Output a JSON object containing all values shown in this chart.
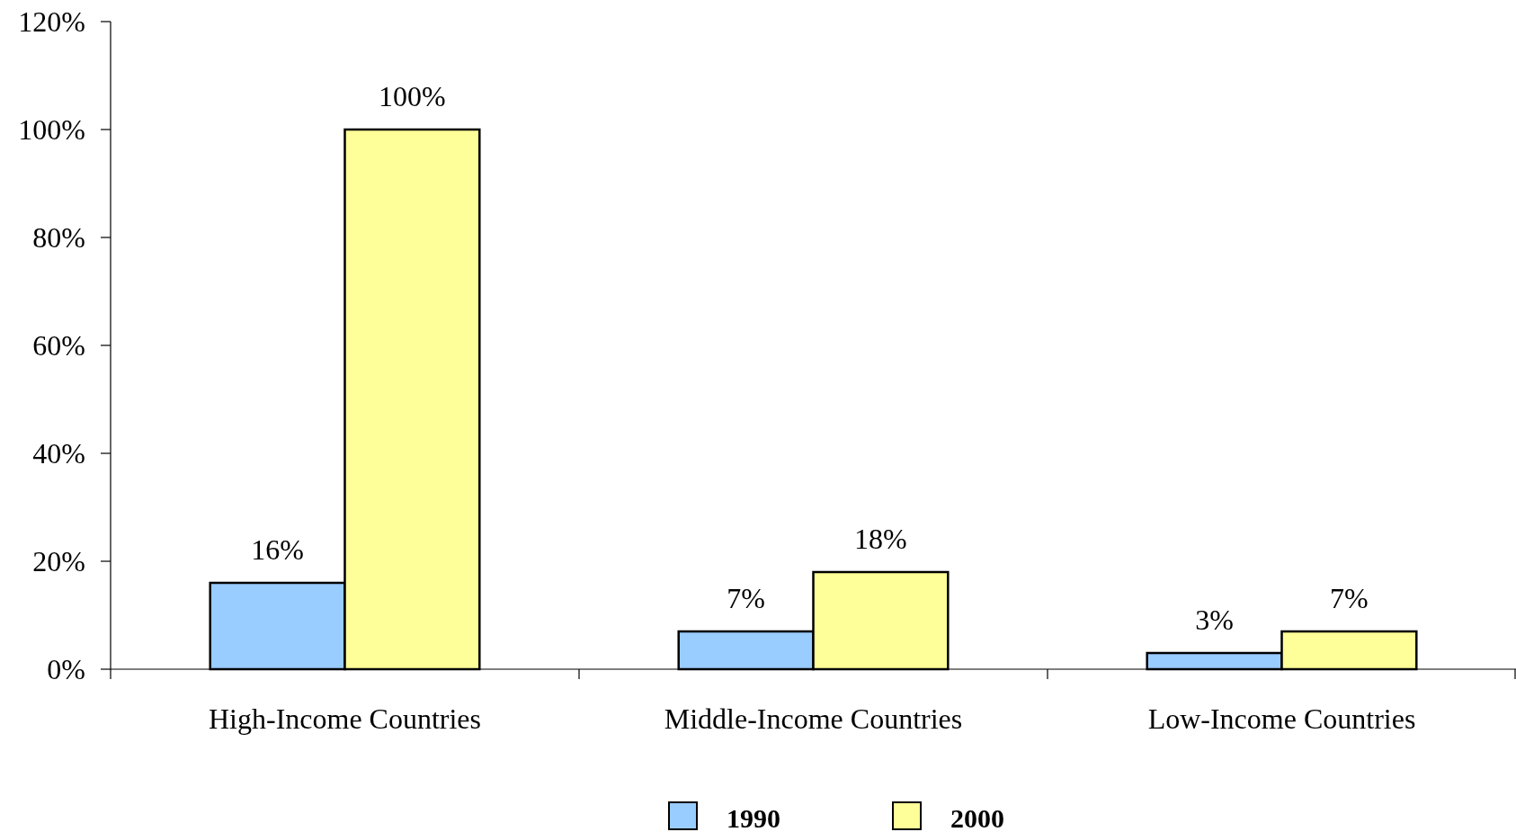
{
  "chart_data": {
    "type": "bar",
    "categories": [
      "High-Income Countries",
      "Middle-Income Countries",
      "Low-Income Countries"
    ],
    "series": [
      {
        "name": "1990",
        "color": "#99ccff",
        "values": [
          16,
          7,
          3
        ],
        "value_labels": [
          "16%",
          "7%",
          "3%"
        ]
      },
      {
        "name": "2000",
        "color": "#ffff99",
        "values": [
          100,
          18,
          7
        ],
        "value_labels": [
          "100%",
          "18%",
          "7%"
        ]
      }
    ],
    "ylim": [
      0,
      120
    ],
    "yticks": [
      {
        "value": 0,
        "label": "0%"
      },
      {
        "value": 20,
        "label": "20%"
      },
      {
        "value": 40,
        "label": "40%"
      },
      {
        "value": 60,
        "label": "60%"
      },
      {
        "value": 80,
        "label": "80%"
      },
      {
        "value": 100,
        "label": "100%"
      },
      {
        "value": 120,
        "label": "120%"
      }
    ],
    "legend": "bottom"
  }
}
